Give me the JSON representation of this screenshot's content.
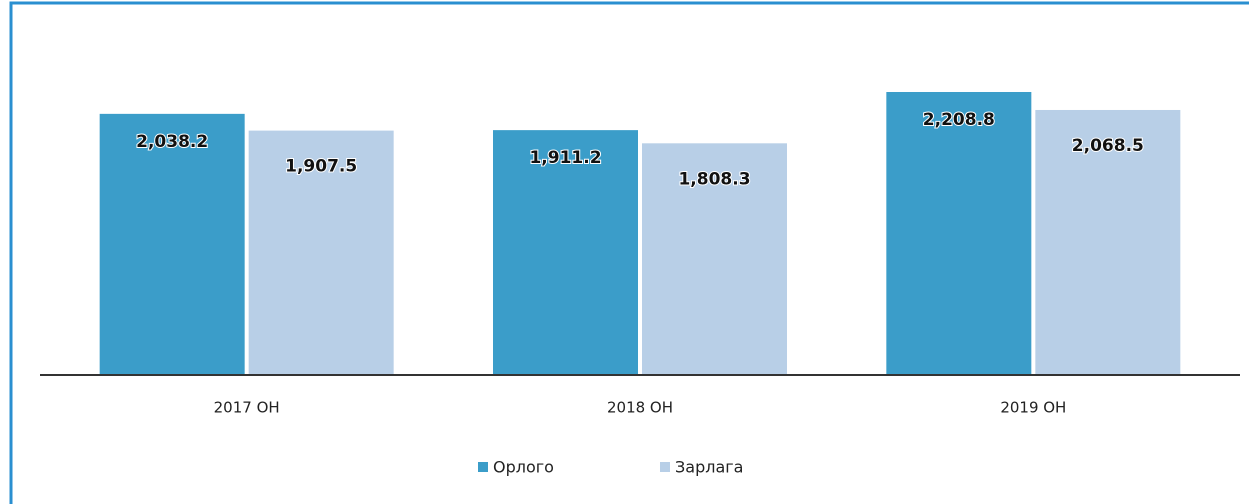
{
  "chart_data": {
    "type": "bar",
    "categories": [
      "2017 ОН",
      "2018 ОН",
      "2019 ОН"
    ],
    "series": [
      {
        "name": "Орлого",
        "color": "#3b9dc9",
        "values": [
          2038.2,
          1911.2,
          2208.8
        ],
        "value_labels": [
          "2,038.2",
          "1,911.2",
          "2,208.8"
        ]
      },
      {
        "name": "Зарлага",
        "color": "#b8cfe7",
        "values": [
          1907.5,
          1808.3,
          2068.5
        ],
        "value_labels": [
          "1,907.5",
          "1,808.3",
          "2,068.5"
        ]
      }
    ],
    "legend": "bottom"
  }
}
